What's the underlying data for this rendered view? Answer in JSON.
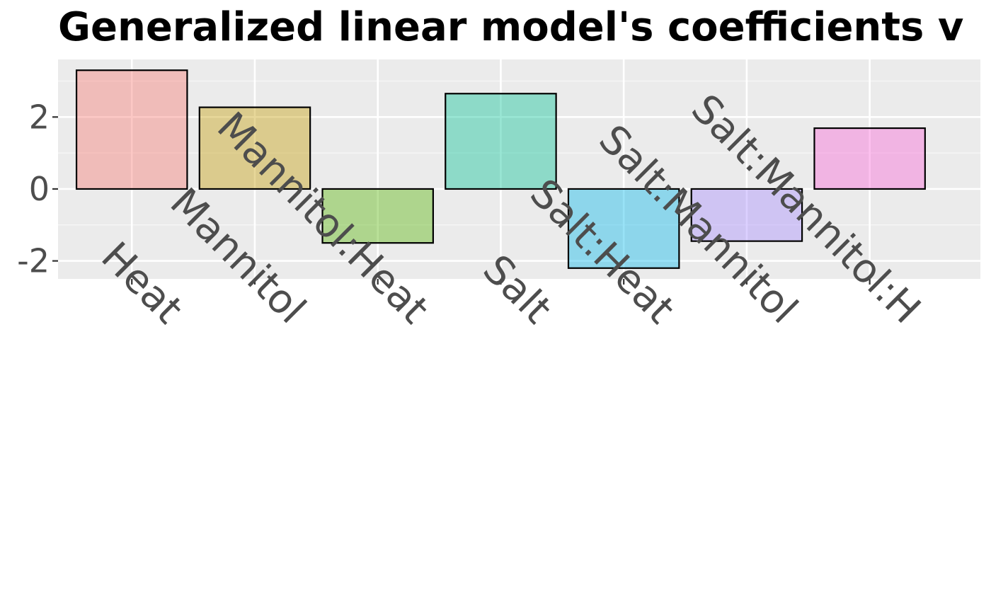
{
  "chart_data": {
    "type": "bar",
    "title": "Generalized linear model's coefficients v",
    "xlabel": "",
    "ylabel": "",
    "categories": [
      "Heat",
      "Mannitol",
      "Mannitol:Heat",
      "Salt",
      "Salt:Heat",
      "Salt:Mannitol",
      "Salt:Mannitol:H"
    ],
    "values": [
      3.3,
      2.27,
      -1.5,
      2.65,
      -2.2,
      -1.45,
      1.69
    ],
    "colors": [
      "#F8766D",
      "#C49A00",
      "#53B400",
      "#00C094",
      "#00B6EB",
      "#A58AFF",
      "#FB61D7"
    ],
    "ylim": [
      -2.5,
      3.6
    ],
    "yticks": [
      2,
      0,
      -2
    ],
    "ytick_labels": [
      "2",
      "0",
      "-2"
    ],
    "grid": true,
    "panel_background": "#EBEBEB",
    "legend": "none"
  }
}
